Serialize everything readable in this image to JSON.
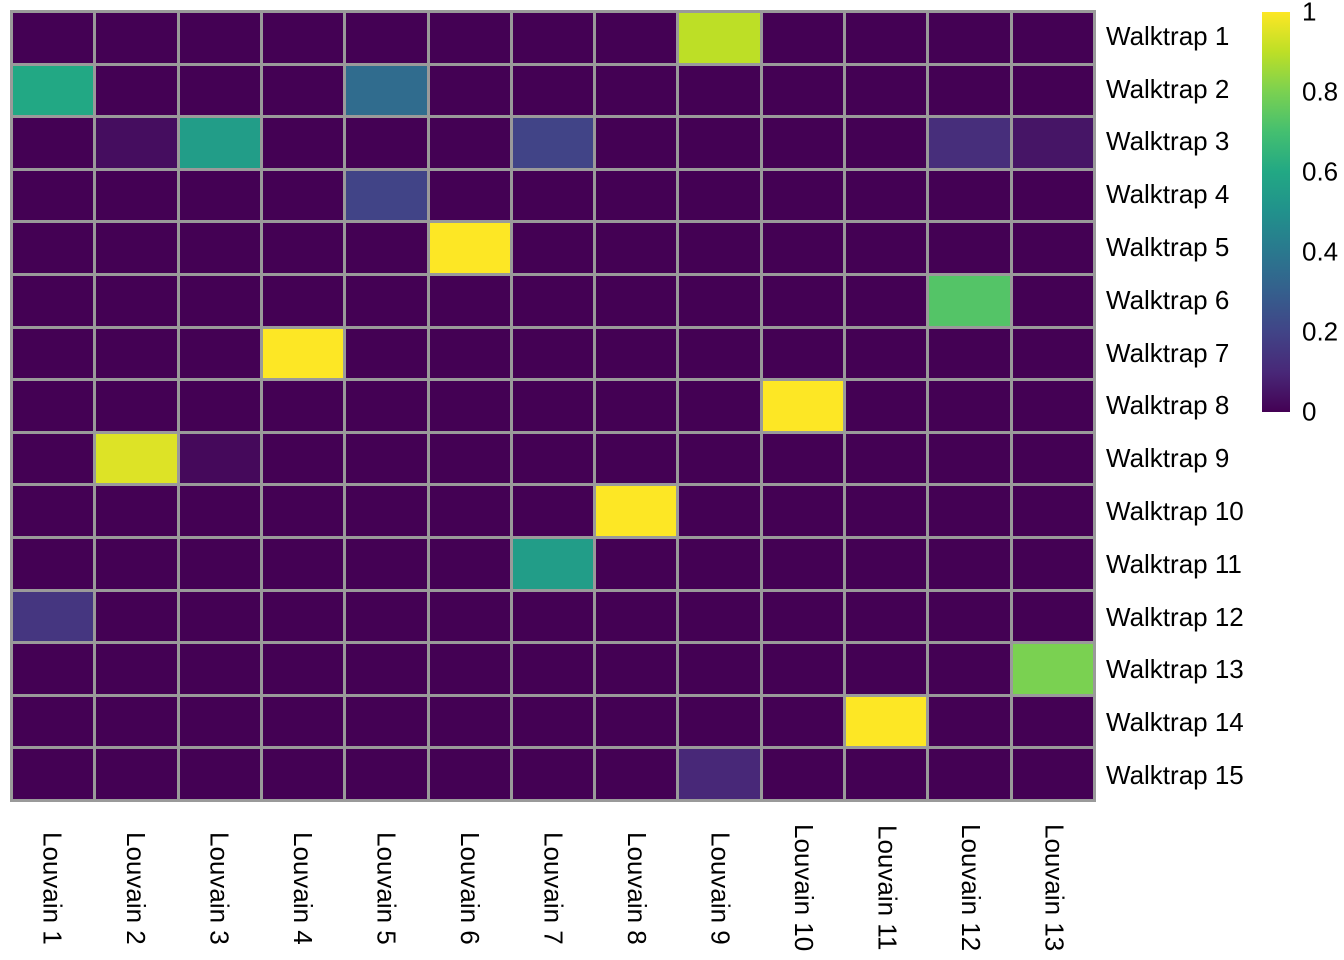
{
  "chart_data": {
    "type": "heatmap",
    "title": "",
    "xlabel": "",
    "ylabel": "",
    "rows": [
      "Walktrap 1",
      "Walktrap 2",
      "Walktrap 3",
      "Walktrap 4",
      "Walktrap 5",
      "Walktrap 6",
      "Walktrap 7",
      "Walktrap 8",
      "Walktrap 9",
      "Walktrap 10",
      "Walktrap 11",
      "Walktrap 12",
      "Walktrap 13",
      "Walktrap 14",
      "Walktrap 15"
    ],
    "columns": [
      "Louvain 1",
      "Louvain 2",
      "Louvain 3",
      "Louvain 4",
      "Louvain 5",
      "Louvain 6",
      "Louvain 7",
      "Louvain 8",
      "Louvain 9",
      "Louvain 10",
      "Louvain 11",
      "Louvain 12",
      "Louvain 13"
    ],
    "matrix": [
      [
        0,
        0,
        0,
        0,
        0,
        0,
        0,
        0,
        0.9,
        0,
        0,
        0,
        0
      ],
      [
        0.6,
        0,
        0,
        0,
        0.35,
        0,
        0,
        0,
        0,
        0,
        0,
        0,
        0
      ],
      [
        0,
        0.03,
        0.55,
        0,
        0,
        0,
        0.2,
        0,
        0,
        0,
        0,
        0.12,
        0.05
      ],
      [
        0,
        0,
        0,
        0,
        0.2,
        0,
        0,
        0,
        0,
        0,
        0,
        0,
        0
      ],
      [
        0,
        0,
        0,
        0,
        0,
        1,
        0,
        0,
        0,
        0,
        0,
        0,
        0
      ],
      [
        0,
        0,
        0,
        0,
        0,
        0,
        0,
        0,
        0,
        0,
        0,
        0.73,
        0
      ],
      [
        0,
        0,
        0,
        1,
        0,
        0,
        0,
        0,
        0,
        0,
        0,
        0,
        0
      ],
      [
        0,
        0,
        0,
        0,
        0,
        0,
        0,
        0,
        0,
        1,
        0,
        0,
        0
      ],
      [
        0,
        0.95,
        0.02,
        0,
        0,
        0,
        0,
        0,
        0,
        0,
        0,
        0,
        0
      ],
      [
        0,
        0,
        0,
        0,
        0,
        0,
        0,
        1,
        0,
        0,
        0,
        0,
        0
      ],
      [
        0,
        0,
        0,
        0,
        0,
        0,
        0.55,
        0,
        0,
        0,
        0,
        0,
        0
      ],
      [
        0.15,
        0,
        0,
        0,
        0,
        0,
        0,
        0,
        0,
        0,
        0,
        0,
        0
      ],
      [
        0,
        0,
        0,
        0,
        0,
        0,
        0,
        0,
        0,
        0,
        0,
        0,
        0.8
      ],
      [
        0,
        0,
        0,
        0,
        0,
        0,
        0,
        0,
        0,
        0,
        1,
        0,
        0
      ],
      [
        0,
        0,
        0,
        0,
        0,
        0,
        0,
        0,
        0.1,
        0,
        0,
        0,
        0
      ]
    ],
    "value_range": [
      0,
      1
    ],
    "legend_position": "right",
    "grid": true,
    "colorbar": {
      "ticks": [
        "1",
        "0.8",
        "0.6",
        "0.4",
        "0.2",
        "0"
      ],
      "tick_values": [
        1,
        0.8,
        0.6,
        0.4,
        0.2,
        0
      ]
    },
    "colormap": {
      "name": "viridis",
      "min_color": "#440154",
      "max_color": "#fde725",
      "stops": [
        "#440154",
        "#482878",
        "#414487",
        "#355f8d",
        "#2a788e",
        "#21918c",
        "#22a884",
        "#44bf70",
        "#7ad151",
        "#bddf26",
        "#fde725"
      ]
    },
    "gridline_color": "#9a9a9a",
    "text_color": "#000000",
    "background_color": "#ffffff"
  }
}
